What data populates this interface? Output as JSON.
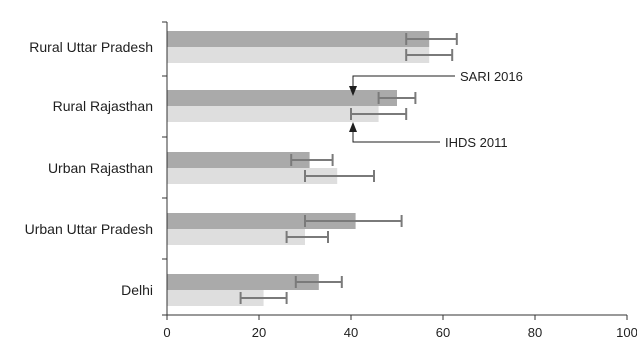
{
  "chart_data": {
    "type": "bar",
    "orientation": "horizontal",
    "categories": [
      "Rural Uttar Pradesh",
      "Rural Rajasthan",
      "Urban Rajasthan",
      "Urban Uttar Pradesh",
      "Delhi"
    ],
    "series": [
      {
        "name": "SARI 2016",
        "color": "#aaaaaa",
        "values": [
          57,
          50,
          31,
          41,
          33
        ],
        "error_low": [
          52,
          46,
          27,
          30,
          28
        ],
        "error_high": [
          63,
          54,
          36,
          51,
          38
        ]
      },
      {
        "name": "IHDS 2011",
        "color": "#dedede",
        "values": [
          57,
          46,
          37,
          30,
          21
        ],
        "error_low": [
          52,
          40,
          30,
          26,
          16
        ],
        "error_high": [
          62,
          52,
          45,
          35,
          26
        ]
      }
    ],
    "xlim": [
      0,
      100
    ],
    "x_ticks": [
      0,
      20,
      40,
      60,
      80,
      100
    ],
    "xlabel": "",
    "ylabel": "",
    "title": "",
    "grid": false,
    "legend": "inline annotations with arrows pointing to Rural Rajasthan bars",
    "annotations": [
      {
        "text": "SARI 2016",
        "target_category": "Rural Rajasthan",
        "target_series": "SARI 2016"
      },
      {
        "text": "IHDS 2011",
        "target_category": "Rural Rajasthan",
        "target_series": "IHDS 2011"
      }
    ],
    "error_bar_color": "#7a7a7a",
    "axis_color": "#333333"
  }
}
